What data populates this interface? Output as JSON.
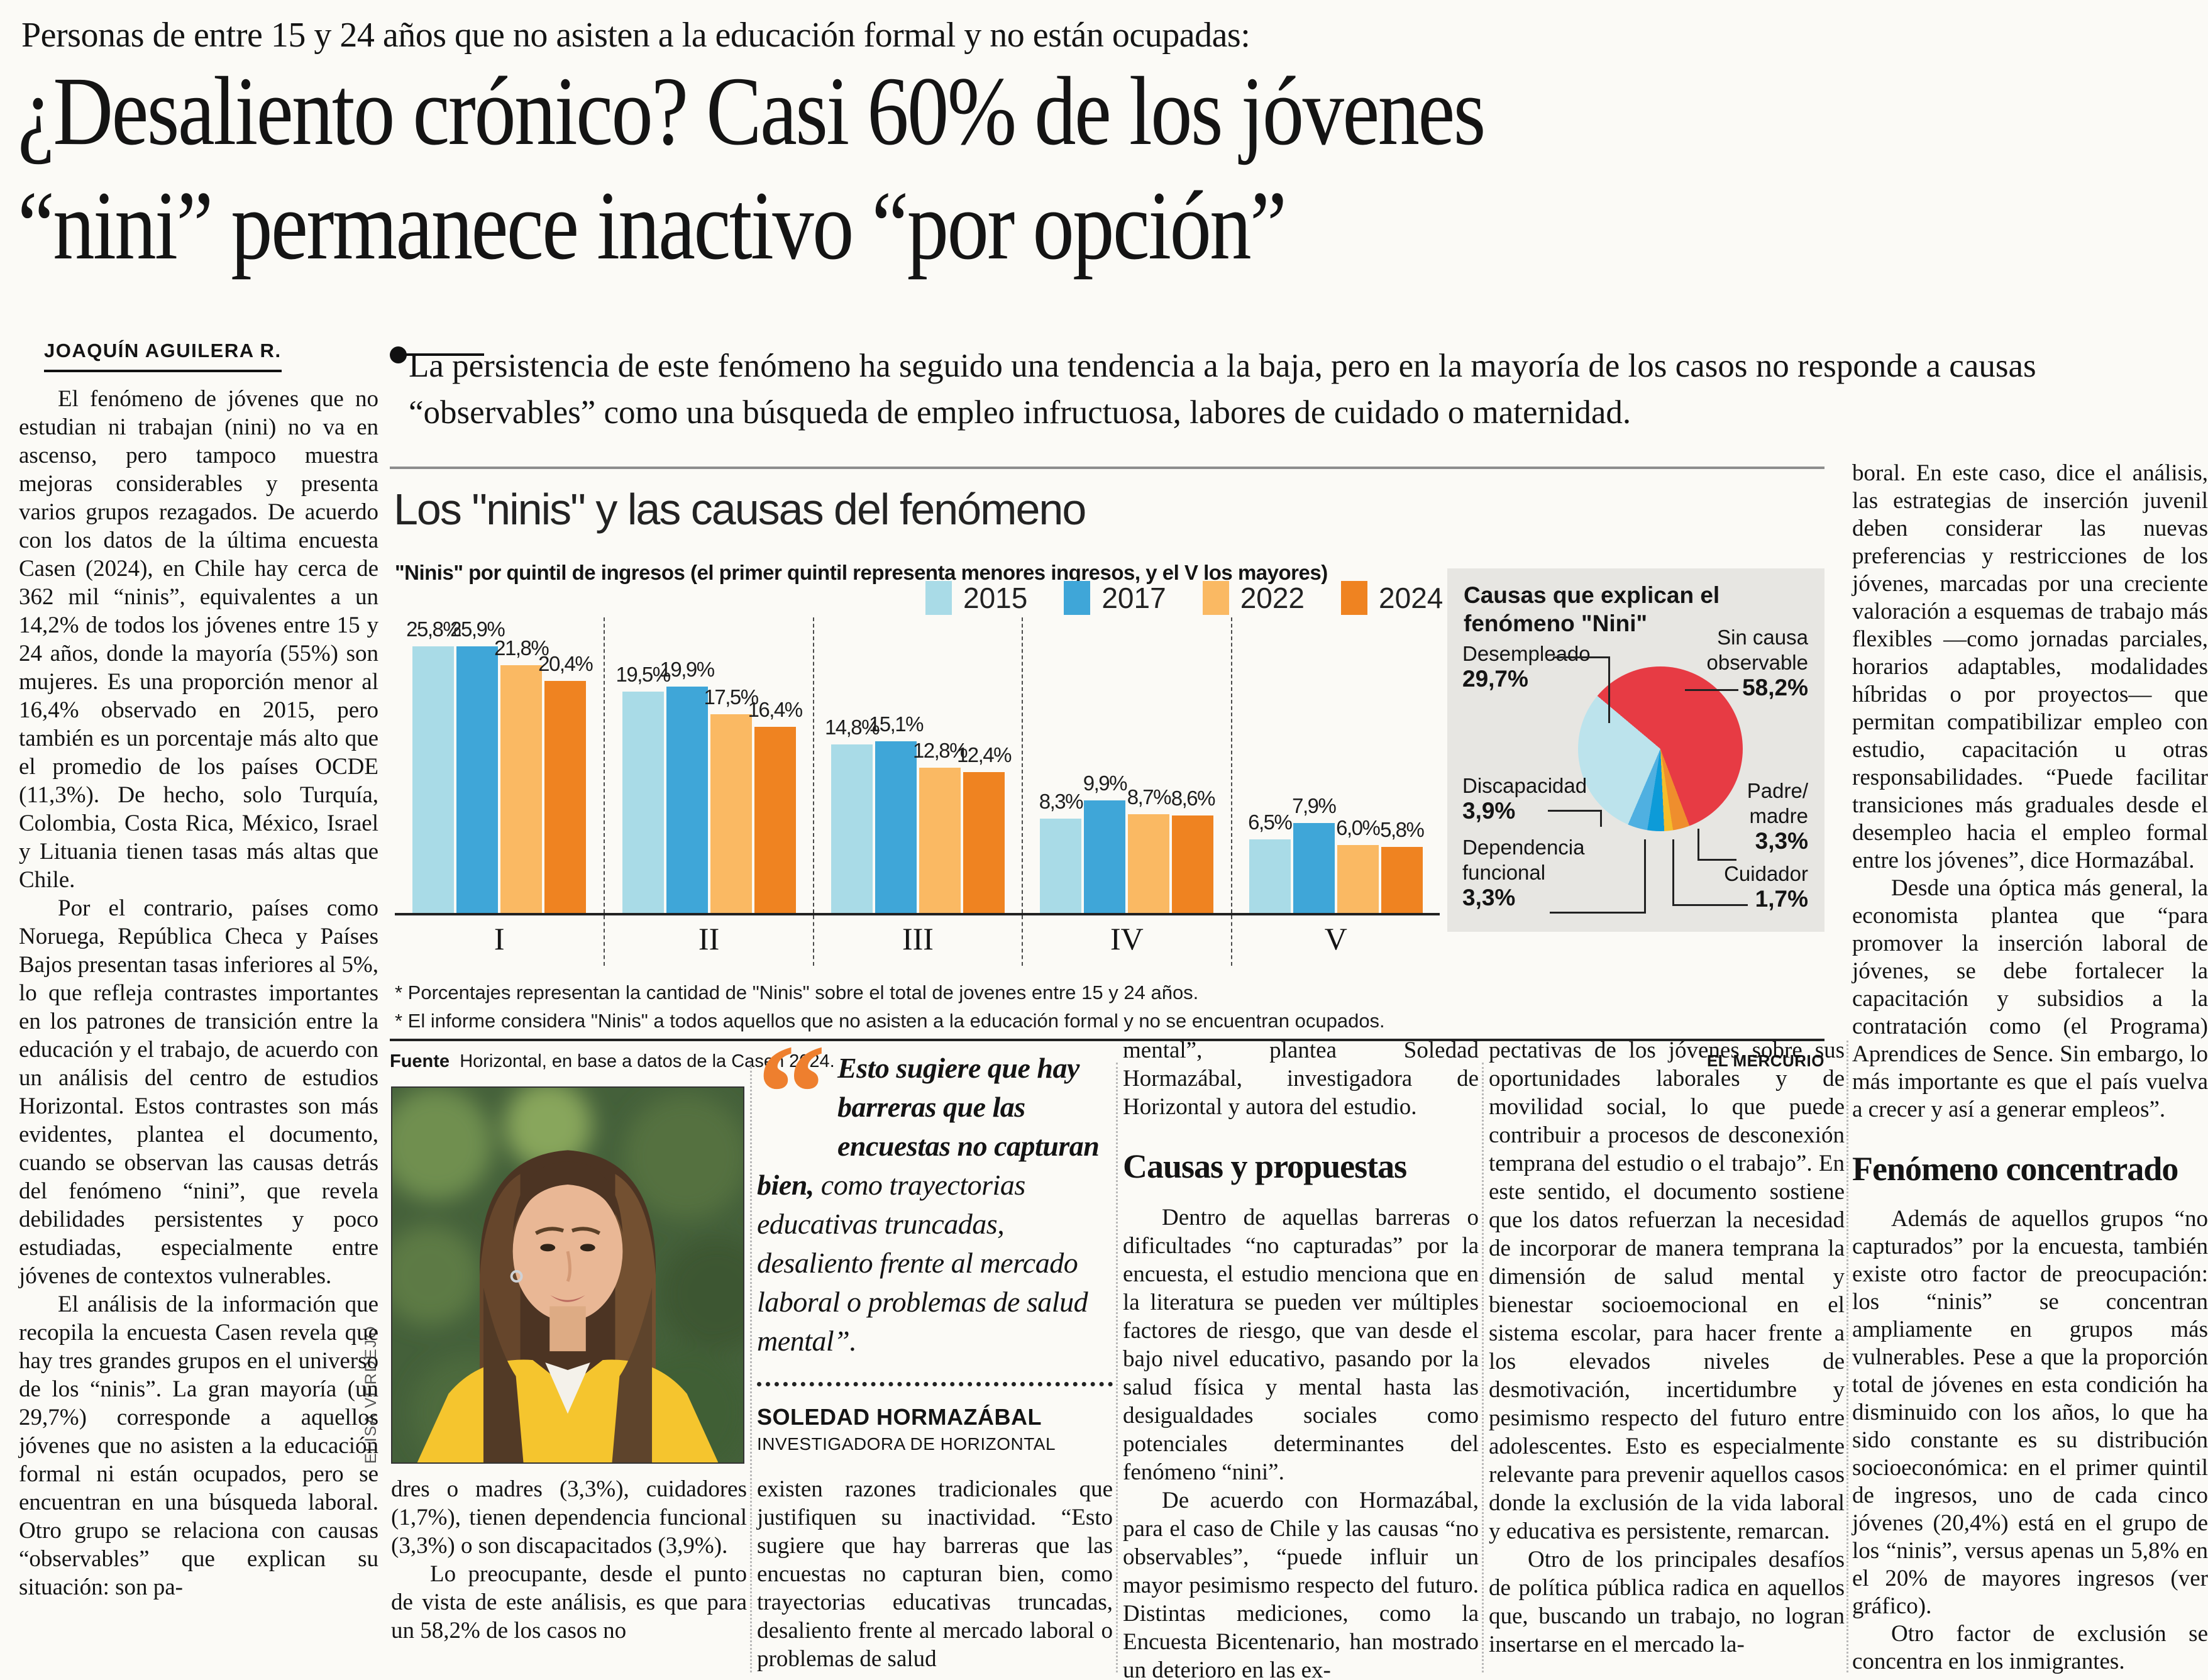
{
  "page": {
    "kicker": "Personas de entre 15 y 24 años que no asisten a la educación formal y no están ocupadas:",
    "headline": [
      "¿Desaliento crónico? Casi 60% de los jóvenes",
      "“nini” permanece inactivo “por opción”"
    ],
    "byline": "JOAQUÍN AGUILERA R.",
    "lede": "La persistencia de este fenómeno ha seguido una tendencia a la baja, pero en la mayoría de los casos no responde a causas “observables” como una búsqueda de empleo infructuosa, labores de cuidado o maternidad."
  },
  "chart_data": {
    "type": "bar",
    "title": "Los \"ninis\" y las causas del fenómeno",
    "subtitle": "\"Ninis\" por quintil de ingresos (el primer quintil representa menores ingresos, y el V los mayores)",
    "categories": [
      "I",
      "II",
      "III",
      "IV",
      "V"
    ],
    "series": [
      {
        "name": "2015",
        "color": "#a9dbe7",
        "values": [
          25.8,
          19.5,
          14.8,
          8.3,
          6.5
        ]
      },
      {
        "name": "2017",
        "color": "#3fa6d8",
        "values": [
          25.9,
          19.9,
          15.1,
          9.9,
          7.9
        ]
      },
      {
        "name": "2022",
        "color": "#fab963",
        "values": [
          21.8,
          17.5,
          12.8,
          8.7,
          6.0
        ]
      },
      {
        "name": "2024",
        "color": "#ef8321",
        "values": [
          20.4,
          16.4,
          12.4,
          8.6,
          5.8
        ]
      }
    ],
    "ylim": [
      0,
      26
    ],
    "legend_position": "top-right",
    "footnotes": [
      "* Porcentajes representan la cantidad de \"Ninis\" sobre el total de jovenes entre 15 y 24 años.",
      "* El informe considera \"Ninis\" a todos aquellos que no asisten a la educación formal y no se encuentran ocupados."
    ],
    "source_label": "Fuente",
    "source": "Horizontal, en base a datos de la Casen 2024.",
    "credit": "EL MERCURIO",
    "pie": {
      "type": "pie",
      "title": "Causas que explican el fenómeno \"Nini\"",
      "start_angle": -50,
      "slices": [
        {
          "label": "Sin causa observable",
          "value": 58.2,
          "display": "58,2%",
          "color": "#e73b44"
        },
        {
          "label": "Padre/ madre",
          "value": 3.3,
          "display": "3,3%",
          "color": "#ef8e2d"
        },
        {
          "label": "Cuidador",
          "value": 1.7,
          "display": "1,7%",
          "color": "#f4bd2b"
        },
        {
          "label": "Dependencia funcional",
          "value": 3.3,
          "display": "3,3%",
          "color": "#0d9bd8"
        },
        {
          "label": "Discapacidad",
          "value": 3.9,
          "display": "3,9%",
          "color": "#4fb0e1"
        },
        {
          "label": "Desempleado",
          "value": 29.7,
          "display": "29,7%",
          "color": "#bce3ec"
        }
      ]
    }
  },
  "pull_quote": {
    "mark": "“",
    "quote_bold": "Esto sugiere que hay barreras que las encuestas no capturan bien,",
    "quote_rest": " como trayectorias educativas truncadas, desaliento frente al mercado laboral o problemas de salud mental”.",
    "author": "SOLEDAD HORMAZÁBAL",
    "role": "INVESTIGADORA DE HORIZONTAL"
  },
  "photo": {
    "credit": "ELISA VERDEJO"
  },
  "columns": {
    "col1": {
      "blocks": [
        {
          "type": "p",
          "indent": true,
          "text": "El fenómeno de jóvenes que no estudian ni trabajan (nini) no va en ascenso, pero tampoco muestra mejoras considerables y presenta varios grupos rezagados. De acuerdo con los datos de la última encuesta Casen (2024), en Chile hay cerca de 362 mil “ninis”, equivalentes a un 14,2% de todos los jóvenes entre 15 y 24 años, donde la mayoría (55%) son mujeres. Es una proporción menor al 16,4% observado en 2015, pero también es un porcentaje más alto que el promedio de los países OCDE (11,3%). De hecho, solo Turquía, Colombia, Costa Rica, México, Israel y Lituania tienen tasas más altas que Chile."
        },
        {
          "type": "p",
          "indent": true,
          "text": "Por el contrario, países como Noruega, República Checa y Países Bajos presentan tasas inferiores al 5%, lo que refleja contrastes importantes en los patrones de transición entre la educación y el trabajo, de acuerdo con un análisis del centro de estudios Horizontal. Estos contrastes son más evidentes, plantea el documento, cuando se observan las causas detrás del fenómeno “nini”, que revela debilidades persistentes y poco estudiadas, especialmente entre jóvenes de contextos vulnerables."
        },
        {
          "type": "p",
          "indent": true,
          "text": "El análisis de la información que recopila la encuesta Casen revela que hay tres grandes grupos en el universo de los “ninis”. La gran mayoría (un 29,7%) corresponde a aquellos jóvenes que no asisten a la educación formal ni están ocupados, pero se encuentran en una búsqueda laboral. Otro grupo se relaciona con causas “observables” que explican su situación: son pa-"
        }
      ]
    },
    "col2": {
      "blocks": [
        {
          "type": "p",
          "indent": false,
          "text": "dres o madres (3,3%), cuidadores (1,7%), tienen dependencia funcional (3,3%) o son discapacitados (3,9%)."
        },
        {
          "type": "p",
          "indent": true,
          "text": "Lo preocupante, desde el punto de vista de este análisis, es que para un 58,2% de los casos no"
        }
      ]
    },
    "col3": {
      "blocks": [
        {
          "type": "p",
          "indent": false,
          "text": "existen razones tradicionales que justifiquen su inactividad. “Esto sugiere que hay barreras que las encuestas no capturan bien, como trayectorias educativas truncadas, desaliento frente al mercado laboral o problemas de salud"
        }
      ]
    },
    "col4": {
      "blocks": [
        {
          "type": "p",
          "indent": false,
          "text": "mental”, plantea Soledad Hormazábal, investigadora de Horizontal y autora del estudio."
        },
        {
          "type": "sub",
          "text": "Causas y propuestas"
        },
        {
          "type": "p",
          "indent": true,
          "text": "Dentro de aquellas barreras o dificultades “no capturadas” por la encuesta, el estudio menciona que en la literatura se pueden ver múltiples factores de riesgo, que van desde el bajo nivel educativo, pasando por la salud física y mental hasta las desigualdades sociales como potenciales determinantes del fenómeno “nini”."
        },
        {
          "type": "p",
          "indent": true,
          "text": "De acuerdo con Hormazábal, para el caso de Chile y las causas “no observables”, “puede influir un mayor pesimismo respecto del futuro. Distintas mediciones, como la Encuesta Bicentenario, han mostrado un deterioro en las ex-"
        }
      ]
    },
    "col5": {
      "blocks": [
        {
          "type": "p",
          "indent": false,
          "text": "pectativas de los jóvenes sobre sus oportunidades laborales y de movilidad social, lo que puede contribuir a procesos de desconexión temprana del estudio o el trabajo”. En este sentido, el documento sostiene que los datos refuerzan la necesidad de incorporar de manera temprana la dimensión de salud mental y bienestar socioemocional en el sistema escolar, para hacer frente a los elevados niveles de desmotivación, incertidumbre y pesimismo respecto del futuro entre adolescentes. Esto es especialmente relevante para prevenir aquellos casos donde la exclusión de la vida laboral y educativa es persistente, remarcan."
        },
        {
          "type": "p",
          "indent": true,
          "text": "Otro de los principales desafíos de política pública radica en aquellos que, buscando un trabajo, no logran insertarse en el mercado la-"
        }
      ]
    },
    "col6": {
      "blocks": [
        {
          "type": "p",
          "indent": false,
          "text": "boral. En este caso, dice el análisis, las estrategias de inserción juvenil deben considerar las nuevas preferencias y restricciones de los jóvenes, marcadas por una creciente valoración a esquemas de trabajo más flexibles —como jornadas parciales, horarios adaptables, modalidades híbridas o por proyectos— que permitan compatibilizar empleo con estudio, capacitación u otras responsabilidades. “Puede facilitar transiciones más graduales desde el desempleo hacia el empleo formal entre los jóvenes”, dice Hormazábal."
        },
        {
          "type": "p",
          "indent": true,
          "text": "Desde una óptica más general, la economista plantea que “para promover la inserción laboral de jóvenes, se debe fortalecer la capacitación y subsidios a la contratación como (el Programa) Aprendices de Sence. Sin embargo, lo más importante es que el país vuelva a crecer y así a generar empleos”."
        },
        {
          "type": "sub",
          "text": "Fenómeno concentrado"
        },
        {
          "type": "p",
          "indent": true,
          "text": "Además de aquellos grupos “no capturados” por la encuesta, también existe otro factor de preocupación: los “ninis” se concentran ampliamente en grupos más vulnerables. Pese a que la proporción total de jóvenes en esta condición ha disminuido con los años, lo que ha sido constante es su distribución socioeconómica: en el primer quintil de ingresos, uno de cada cinco jóvenes (20,4%) está en el grupo de los “ninis”, versus apenas un 5,8% en el 20% de mayores ingresos (ver gráfico)."
        },
        {
          "type": "p",
          "indent": true,
          "text": "Otro factor de exclusión se concentra en los inmigrantes."
        }
      ]
    }
  }
}
